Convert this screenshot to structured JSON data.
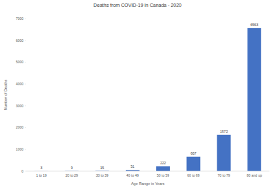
{
  "chart_data": {
    "type": "bar",
    "title": "Deaths from COVID-19 in Canada - 2020",
    "x_label": "Age Range in Years",
    "y_label": "Number of Deaths",
    "categories": [
      "1 to 19",
      "20 to 29",
      "30 to 39",
      "40 to 49",
      "50 to 59",
      "60 to 69",
      "70 to 79",
      "80 and up"
    ],
    "values": [
      3,
      9,
      15,
      51,
      222,
      667,
      1673,
      6563
    ],
    "color": "#4472c4",
    "ylim": [
      0,
      7000
    ],
    "yticks": [
      0,
      1000,
      2000,
      3000,
      4000,
      5000,
      6000,
      7000
    ],
    "grid": false,
    "data_labels": true
  }
}
